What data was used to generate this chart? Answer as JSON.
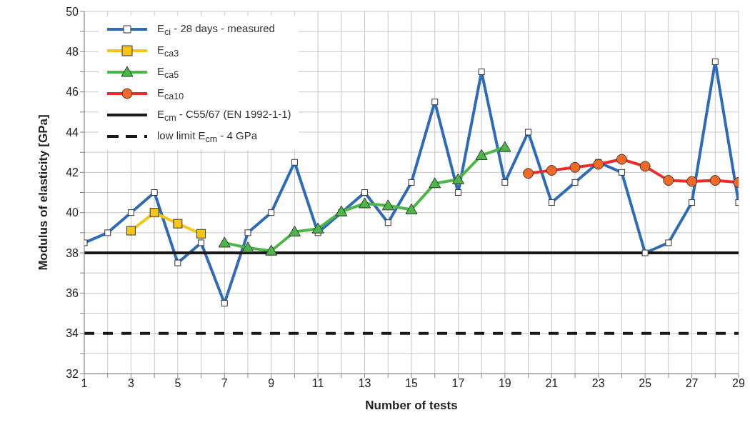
{
  "chart_data": {
    "type": "line",
    "xlabel": "Number of tests",
    "ylabel": "Modulus of elasticity  [GPa]",
    "xlim": [
      1,
      29
    ],
    "xticks": [
      1,
      {
        "value": 2,
        "label": null
      },
      3,
      {
        "value": 4,
        "label": null
      },
      5,
      {
        "value": 6,
        "label": null
      },
      7,
      {
        "value": 8,
        "label": null
      },
      9,
      {
        "value": 10,
        "label": null
      },
      11,
      {
        "value": 12,
        "label": null
      },
      13,
      {
        "value": 14,
        "label": null
      },
      15,
      {
        "value": 16,
        "label": null
      },
      17,
      {
        "value": 18,
        "label": null
      },
      19,
      {
        "value": 20,
        "label": null
      },
      21,
      {
        "value": 22,
        "label": null
      },
      23,
      {
        "value": 24,
        "label": null
      },
      25,
      {
        "value": 26,
        "label": null
      },
      27,
      {
        "value": 28,
        "label": null
      },
      29
    ],
    "ylim": [
      32,
      50
    ],
    "yticks": [
      32,
      {
        "value": 33,
        "label": null
      },
      34,
      {
        "value": 35,
        "label": null
      },
      36,
      {
        "value": 37,
        "label": null
      },
      38,
      {
        "value": 39,
        "label": null
      },
      40,
      {
        "value": 41,
        "label": null
      },
      42,
      {
        "value": 43,
        "label": null
      },
      44,
      {
        "value": 45,
        "label": null
      },
      46,
      {
        "value": 47,
        "label": null
      },
      48,
      {
        "value": 49,
        "label": null
      },
      50
    ],
    "grid": true,
    "legend": "top left",
    "series": [
      {
        "name": "E$_{ci}$ - 28 days - measured",
        "color": "#2e6bb8",
        "marker": "square",
        "x": [
          1,
          2,
          3,
          4,
          5,
          6,
          7,
          8,
          9,
          10,
          11,
          12,
          13,
          14,
          15,
          16,
          17,
          18,
          19,
          20,
          21,
          22,
          23,
          24,
          25,
          26,
          27,
          28,
          29
        ],
        "values": [
          38.5,
          39,
          40,
          41,
          37.5,
          38.5,
          35.5,
          39,
          40,
          42.5,
          39,
          40,
          41,
          39.5,
          41.5,
          45.5,
          41,
          47,
          41.5,
          44,
          40.5,
          41.5,
          42.5,
          42,
          38,
          38.5,
          40.5,
          47.5,
          40.5
        ]
      },
      {
        "name": "E$_{ca3}$",
        "color": "#f5c518",
        "marker": "square",
        "x": [
          3,
          4,
          5,
          6
        ],
        "values": [
          39.1,
          40,
          39.45,
          38.95
        ]
      },
      {
        "name": "E$_{ca5}$",
        "color": "#4cb748",
        "marker": "triangle",
        "x": [
          7,
          8,
          9,
          10,
          11,
          12,
          13,
          14,
          15,
          16,
          17,
          18,
          19
        ],
        "values": [
          38.5,
          38.25,
          38.1,
          39.05,
          39.2,
          40.05,
          40.45,
          40.35,
          40.15,
          41.45,
          41.65,
          42.85,
          43.25
        ]
      },
      {
        "name": "E$_{ca10}$",
        "color": "#ee2b2b",
        "marker": "circle",
        "x": [
          20,
          21,
          22,
          23,
          24,
          25,
          26,
          27,
          28,
          29
        ],
        "values": [
          41.95,
          42.1,
          42.25,
          42.4,
          42.65,
          42.3,
          41.6,
          41.55,
          41.6,
          41.5
        ]
      },
      {
        "name": "E$_{cm}$  - C55/67 (EN 1992-1-1)",
        "color": "#1a1a1a",
        "marker": "none",
        "line_style": "solid",
        "x": [
          1,
          29
        ],
        "values": [
          38,
          38
        ]
      },
      {
        "name": "low limit E$_{cm}$ - 4 GPa",
        "color": "#1a1a1a",
        "marker": "none",
        "line_style": "dashed",
        "x": [
          1,
          29
        ],
        "values": [
          34,
          34
        ]
      }
    ]
  }
}
